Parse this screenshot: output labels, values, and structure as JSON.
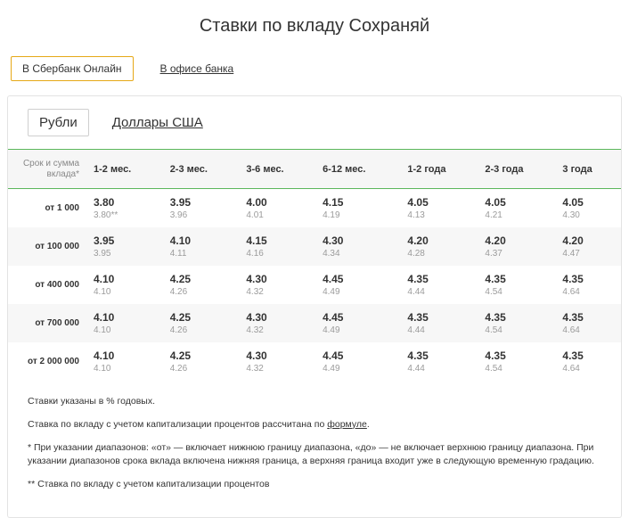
{
  "title": "Ставки по вкладу Сохраняй",
  "outer_tabs": {
    "online": "В Сбербанк Онлайн",
    "office": "В офисе банка"
  },
  "currency_tabs": {
    "rub": "Рубли",
    "usd": "Доллары США"
  },
  "table": {
    "header_label_line1": "Срок и сумма",
    "header_label_line2": "вклада*",
    "columns": [
      "1-2 мес.",
      "2-3 мес.",
      "3-6 мес.",
      "6-12 мес.",
      "1-2 года",
      "2-3 года",
      "3 года"
    ],
    "rows": [
      {
        "label": "от 1 000",
        "main": [
          "3.80",
          "3.95",
          "4.00",
          "4.15",
          "4.05",
          "4.05",
          "4.05"
        ],
        "sub": [
          "3.80**",
          "3.96",
          "4.01",
          "4.19",
          "4.13",
          "4.21",
          "4.30"
        ]
      },
      {
        "label": "от 100 000",
        "main": [
          "3.95",
          "4.10",
          "4.15",
          "4.30",
          "4.20",
          "4.20",
          "4.20"
        ],
        "sub": [
          "3.95",
          "4.11",
          "4.16",
          "4.34",
          "4.28",
          "4.37",
          "4.47"
        ]
      },
      {
        "label": "от 400 000",
        "main": [
          "4.10",
          "4.25",
          "4.30",
          "4.45",
          "4.35",
          "4.35",
          "4.35"
        ],
        "sub": [
          "4.10",
          "4.26",
          "4.32",
          "4.49",
          "4.44",
          "4.54",
          "4.64"
        ]
      },
      {
        "label": "от 700 000",
        "main": [
          "4.10",
          "4.25",
          "4.30",
          "4.45",
          "4.35",
          "4.35",
          "4.35"
        ],
        "sub": [
          "4.10",
          "4.26",
          "4.32",
          "4.49",
          "4.44",
          "4.54",
          "4.64"
        ]
      },
      {
        "label": "от 2 000 000",
        "main": [
          "4.10",
          "4.25",
          "4.30",
          "4.45",
          "4.35",
          "4.35",
          "4.35"
        ],
        "sub": [
          "4.10",
          "4.26",
          "4.32",
          "4.49",
          "4.44",
          "4.54",
          "4.64"
        ]
      }
    ]
  },
  "footnotes": {
    "f1": "Ставки указаны в % годовых.",
    "f2a": "Ставка по вкладу с учетом капитализации процентов рассчитана по ",
    "f2_link": "формуле",
    "f2b": ".",
    "f3": "* При указании диапазонов: «от» — включает нижнюю границу диапазона, «до» — не включает верхнюю границу диапазона. При указании диапазонов срока вклада включена нижняя граница, а верхняя граница входит уже в следующую временную градацию.",
    "f4": "** Ставка по вкладу с учетом капитализации процентов"
  },
  "style": {
    "accent_border": "#e6a817",
    "table_header_border": "#5bb75b",
    "panel_border": "#e3e3e3",
    "row_alt_bg": "#f7f7f7",
    "header_bg": "#f6f6f6",
    "text_muted": "#9b9b9b",
    "text_main": "#333333",
    "background": "#ffffff"
  }
}
